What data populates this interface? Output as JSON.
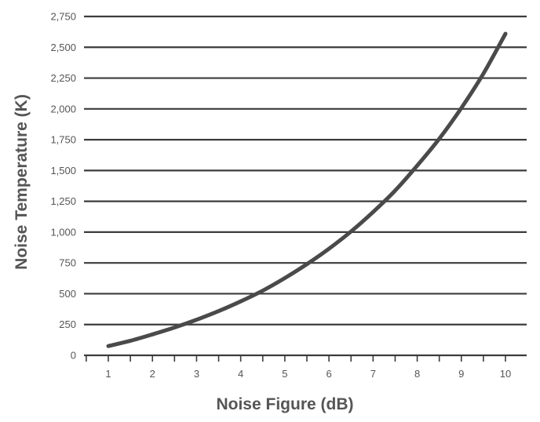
{
  "chart_data": {
    "type": "line",
    "title": "",
    "xlabel": "Noise Figure (dB)",
    "ylabel": "Noise Temperature (K)",
    "xlim": [
      1,
      10
    ],
    "ylim": [
      0,
      2750
    ],
    "x_ticks": [
      "1",
      "2",
      "3",
      "4",
      "5",
      "6",
      "7",
      "8",
      "9",
      "10"
    ],
    "y_ticks": [
      "0",
      "250",
      "500",
      "750",
      "1,000",
      "1,250",
      "1,500",
      "1,750",
      "2,000",
      "2,250",
      "2,500",
      "2,750"
    ],
    "grid": "horizontal",
    "line_color": "#4a4a4a",
    "grid_color": "#3c3c3c",
    "series": [
      {
        "x": [
          1.0,
          1.5,
          2.0,
          2.5,
          3.0,
          3.5,
          4.0,
          4.5,
          5.0,
          5.5,
          6.0,
          6.5,
          7.0,
          7.5,
          8.0,
          8.5,
          9.0,
          9.5,
          10.0
        ],
        "values": [
          75,
          118,
          170,
          226,
          289,
          359,
          438,
          525,
          627,
          740,
          865,
          1005,
          1163,
          1337,
          1540,
          1758,
          2007,
          2286,
          2610
        ]
      }
    ]
  }
}
